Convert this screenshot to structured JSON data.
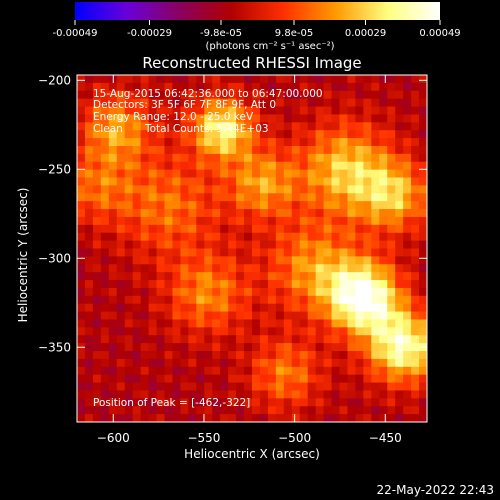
{
  "window": {
    "timestamp": "22-May-2022 22:43"
  },
  "colorbar": {
    "ticks": [
      -0.00049,
      -0.00029,
      -9.8e-05,
      9.8e-05,
      0.00029,
      0.00049
    ],
    "tick_labels": [
      "-0.00049",
      "-0.00029",
      "-9.8e-05",
      "9.8e-05",
      "0.00029",
      "0.00049"
    ],
    "unit_label": "(photons cm⁻² s⁻¹ asec⁻²)",
    "range": [
      -0.00049,
      0.00049
    ],
    "colors": [
      "#0000ff",
      "#6a00d8",
      "#8a0060",
      "#b00000",
      "#ff3000",
      "#ff9a00",
      "#ffff80",
      "#ffffff"
    ]
  },
  "chart_data": {
    "type": "heatmap",
    "title": "Reconstructed RHESSI Image",
    "xlabel": "Heliocentric X (arcsec)",
    "ylabel": "Heliocentric Y (arcsec)",
    "xlim": [
      -620,
      -427
    ],
    "ylim": [
      -392,
      -197
    ],
    "x_ticks": [
      -600,
      -550,
      -500,
      -450
    ],
    "y_ticks": [
      -200,
      -250,
      -300,
      -350
    ],
    "annotations": {
      "time": "15-Aug-2015 06:42:36.000 to 06:47:00.000",
      "detectors": "Detectors: 3F 5F 6F 7F 8F 9F, Att 0",
      "energy": "Energy Range: 12.0 - 25.0 keV",
      "clean_label": "Clean",
      "counts": "Total Counts: 5.44E+03",
      "peak": "Position of Peak = [-462,-322]"
    },
    "peak_position": [
      -462,
      -322
    ],
    "sources": [
      {
        "x": -540,
        "y": -227,
        "intensity": 0.78,
        "width": 12
      },
      {
        "x": -472,
        "y": -250,
        "intensity": 0.62,
        "width": 18
      },
      {
        "x": -445,
        "y": -265,
        "intensity": 0.55,
        "width": 14
      },
      {
        "x": -598,
        "y": -227,
        "intensity": 0.52,
        "width": 14
      },
      {
        "x": -570,
        "y": -270,
        "intensity": 0.4,
        "width": 20
      },
      {
        "x": -548,
        "y": -320,
        "intensity": 0.45,
        "width": 16
      },
      {
        "x": -518,
        "y": -258,
        "intensity": 0.5,
        "width": 14
      },
      {
        "x": -462,
        "y": -322,
        "intensity": 1.0,
        "width": 14
      },
      {
        "x": -440,
        "y": -350,
        "intensity": 0.85,
        "width": 14
      },
      {
        "x": -490,
        "y": -305,
        "intensity": 0.48,
        "width": 18
      },
      {
        "x": -505,
        "y": -365,
        "intensity": 0.42,
        "width": 14
      },
      {
        "x": -610,
        "y": -260,
        "intensity": 0.35,
        "width": 14
      }
    ],
    "background_level": -0.15
  }
}
